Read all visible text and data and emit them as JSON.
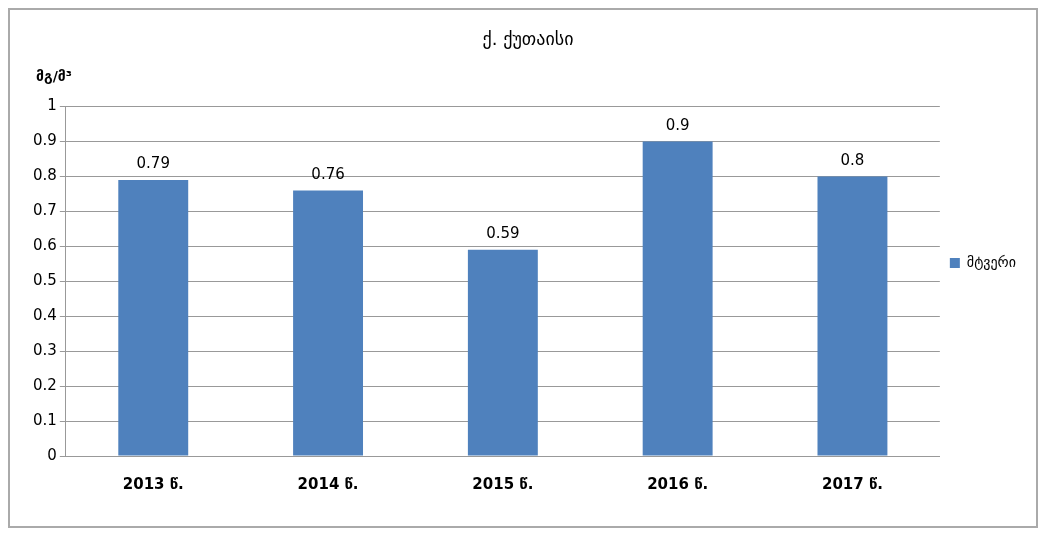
{
  "chart_data": {
    "type": "bar",
    "title": "ქ. ქუთაისი",
    "ylabel": "მგ/მ³",
    "categories": [
      "2013 წ.",
      "2014 წ.",
      "2015 წ.",
      "2016 წ.",
      "2017 წ."
    ],
    "series": [
      {
        "name": "მტვერი",
        "color": "#4f81bd",
        "values": [
          0.79,
          0.76,
          0.59,
          0.9,
          0.8
        ]
      }
    ],
    "ylim": [
      0,
      1
    ],
    "yticks": [
      0,
      0.1,
      0.2,
      0.3,
      0.4,
      0.5,
      0.6,
      0.7,
      0.8,
      0.9,
      1
    ],
    "grid": "y",
    "legend": "right",
    "data_labels": true
  }
}
